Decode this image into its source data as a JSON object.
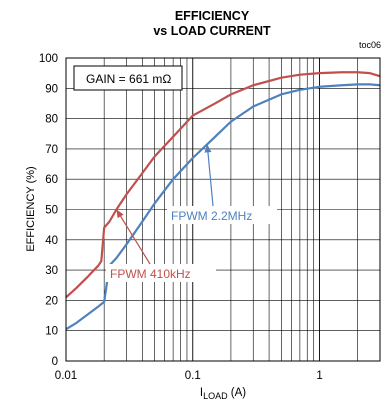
{
  "chart_data": {
    "type": "line",
    "title_lines": [
      "EFFICIENCY",
      "vs LOAD CURRENT"
    ],
    "figure_tag": "toc06",
    "ylabel": "EFFICIENCY (%)",
    "xlabel_main": "I",
    "xlabel_sub": "LOAD",
    "xlabel_unit": " (A)",
    "xscale": "log",
    "xlim": [
      0.01,
      3
    ],
    "ylim": [
      0,
      100
    ],
    "xticks": [
      0.01,
      0.1,
      1
    ],
    "xtick_labels": [
      "0.01",
      "0.1",
      "1"
    ],
    "yticks": [
      0,
      10,
      20,
      30,
      40,
      50,
      60,
      70,
      80,
      90,
      100
    ],
    "ytick_labels": [
      "0",
      "10",
      "20",
      "30",
      "40",
      "50",
      "60",
      "70",
      "80",
      "90",
      "100"
    ],
    "grid": true,
    "legend_box_text": "GAIN = 661 mΩ",
    "series": [
      {
        "name": "FPWM 410kHz",
        "color": "#c0504d",
        "x": [
          0.01,
          0.012,
          0.015,
          0.018,
          0.019,
          0.02,
          0.022,
          0.025,
          0.03,
          0.04,
          0.05,
          0.07,
          0.1,
          0.15,
          0.2,
          0.3,
          0.5,
          0.7,
          1,
          1.5,
          2,
          2.5,
          3
        ],
        "y": [
          21,
          24,
          28,
          31.5,
          33,
          44,
          46,
          50,
          55,
          62,
          67.5,
          74,
          81,
          85,
          88,
          91,
          93.5,
          94.5,
          95,
          95.3,
          95.3,
          95,
          94
        ]
      },
      {
        "name": "FPWM 2.2MHz",
        "color": "#4f81bd",
        "x": [
          0.01,
          0.012,
          0.015,
          0.018,
          0.02,
          0.022,
          0.025,
          0.03,
          0.04,
          0.05,
          0.07,
          0.1,
          0.15,
          0.2,
          0.3,
          0.5,
          0.7,
          1,
          1.5,
          2,
          2.5,
          3
        ],
        "y": [
          10.5,
          12.5,
          15.5,
          18,
          19.5,
          31.5,
          34,
          38.5,
          46,
          52,
          60,
          67,
          74,
          79,
          84,
          88,
          89.5,
          90.5,
          91,
          91.3,
          91.3,
          91
        ]
      }
    ],
    "annotations": [
      {
        "text": "FPWM 2.2MHz",
        "color": "#4f81bd"
      },
      {
        "text": "FPWM 410kHz",
        "color": "#c0504d"
      }
    ]
  }
}
